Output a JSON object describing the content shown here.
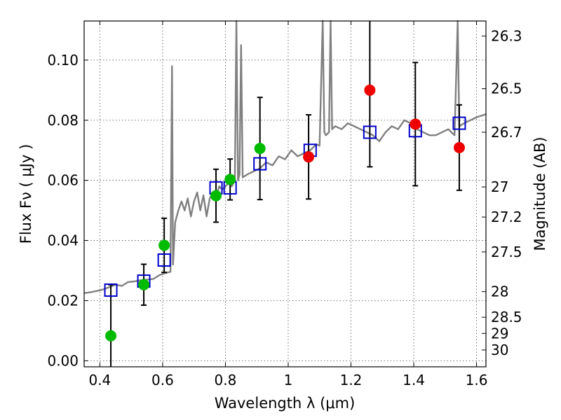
{
  "chart_data": {
    "type": "scatter",
    "title": "",
    "xlabel": "Wavelength  λ (μm)",
    "ylabel": "Flux  Fν  ( μJy )",
    "ylabel_right": "Magnitude (AB)",
    "xlim": [
      0.35,
      1.63
    ],
    "ylim": [
      -0.002,
      0.113
    ],
    "grid": true,
    "x_ticks": [
      0.4,
      0.6,
      0.8,
      1.0,
      1.2,
      1.4,
      1.6
    ],
    "x_tick_labels": [
      "0.4",
      "0.6",
      "0.8",
      "1",
      "1.2",
      "1.4",
      "1.6"
    ],
    "y_ticks": [
      0.0,
      0.02,
      0.04,
      0.06,
      0.08,
      0.1
    ],
    "y_tick_labels": [
      "0.00",
      "0.02",
      "0.04",
      "0.06",
      "0.08",
      "0.10"
    ],
    "right_ticks": [
      {
        "flux": 0.108,
        "label": "26.3"
      },
      {
        "flux": 0.0905,
        "label": "26.5"
      },
      {
        "flux": 0.076,
        "label": "26.7"
      },
      {
        "flux": 0.0578,
        "label": "27"
      },
      {
        "flux": 0.0478,
        "label": "27.2"
      },
      {
        "flux": 0.0362,
        "label": "27.5"
      },
      {
        "flux": 0.023,
        "label": "28"
      },
      {
        "flux": 0.0145,
        "label": "28.5"
      },
      {
        "flux": 0.0091,
        "label": "29"
      },
      {
        "flux": 0.0036,
        "label": "30"
      }
    ],
    "colors": {
      "spectrum": "#808080",
      "model_box": "#0000cc",
      "green": "#00bb00",
      "red": "#ee0000",
      "error_bar": "#000000"
    },
    "series": [
      {
        "kind": "spectrum",
        "points": [
          [
            0.35,
            0.0225
          ],
          [
            0.37,
            0.0228
          ],
          [
            0.39,
            0.0232
          ],
          [
            0.41,
            0.0237
          ],
          [
            0.43,
            0.0245
          ],
          [
            0.45,
            0.0253
          ],
          [
            0.47,
            0.0249
          ],
          [
            0.49,
            0.0262
          ],
          [
            0.51,
            0.0264
          ],
          [
            0.53,
            0.0268
          ],
          [
            0.55,
            0.027
          ],
          [
            0.57,
            0.0272
          ],
          [
            0.59,
            0.0285
          ],
          [
            0.61,
            0.0292
          ],
          [
            0.625,
            0.0296
          ],
          [
            0.63,
            0.098
          ],
          [
            0.633,
            0.032
          ],
          [
            0.64,
            0.046
          ],
          [
            0.65,
            0.05
          ],
          [
            0.66,
            0.053
          ],
          [
            0.67,
            0.05
          ],
          [
            0.68,
            0.054
          ],
          [
            0.69,
            0.048
          ],
          [
            0.7,
            0.053
          ],
          [
            0.71,
            0.056
          ],
          [
            0.72,
            0.05
          ],
          [
            0.73,
            0.055
          ],
          [
            0.74,
            0.048
          ],
          [
            0.75,
            0.054
          ],
          [
            0.76,
            0.056
          ],
          [
            0.77,
            0.054
          ],
          [
            0.78,
            0.058
          ],
          [
            0.79,
            0.057
          ],
          [
            0.8,
            0.058
          ],
          [
            0.81,
            0.059
          ],
          [
            0.82,
            0.058
          ],
          [
            0.83,
            0.06
          ],
          [
            0.835,
            0.113
          ],
          [
            0.84,
            0.06
          ],
          [
            0.845,
            0.062
          ],
          [
            0.85,
            0.105
          ],
          [
            0.855,
            0.061
          ],
          [
            0.87,
            0.062
          ],
          [
            0.89,
            0.063
          ],
          [
            0.91,
            0.064
          ],
          [
            0.93,
            0.066
          ],
          [
            0.95,
            0.065
          ],
          [
            0.97,
            0.068
          ],
          [
            0.99,
            0.067
          ],
          [
            1.01,
            0.07
          ],
          [
            1.03,
            0.068
          ],
          [
            1.05,
            0.069
          ],
          [
            1.07,
            0.07
          ],
          [
            1.09,
            0.072
          ],
          [
            1.1,
            0.0715
          ],
          [
            1.11,
            0.113
          ],
          [
            1.115,
            0.076
          ],
          [
            1.12,
            0.075
          ],
          [
            1.13,
            0.076
          ],
          [
            1.135,
            0.113
          ],
          [
            1.14,
            0.077
          ],
          [
            1.15,
            0.078
          ],
          [
            1.17,
            0.077
          ],
          [
            1.19,
            0.079
          ],
          [
            1.21,
            0.078
          ],
          [
            1.23,
            0.077
          ],
          [
            1.25,
            0.076
          ],
          [
            1.27,
            0.075
          ],
          [
            1.29,
            0.073
          ],
          [
            1.31,
            0.076
          ],
          [
            1.33,
            0.078
          ],
          [
            1.35,
            0.077
          ],
          [
            1.37,
            0.08
          ],
          [
            1.39,
            0.079
          ],
          [
            1.41,
            0.077
          ],
          [
            1.43,
            0.076
          ],
          [
            1.45,
            0.075
          ],
          [
            1.47,
            0.075
          ],
          [
            1.49,
            0.076
          ],
          [
            1.51,
            0.077
          ],
          [
            1.53,
            0.075
          ],
          [
            1.54,
            0.113
          ],
          [
            1.545,
            0.078
          ],
          [
            1.56,
            0.079
          ],
          [
            1.58,
            0.08
          ],
          [
            1.6,
            0.081
          ],
          [
            1.63,
            0.082
          ]
        ]
      },
      {
        "kind": "model_boxes",
        "points": [
          [
            0.435,
            0.0235
          ],
          [
            0.54,
            0.0265
          ],
          [
            0.605,
            0.0335
          ],
          [
            0.77,
            0.0575
          ],
          [
            0.815,
            0.0575
          ],
          [
            0.91,
            0.0655
          ],
          [
            1.07,
            0.07
          ],
          [
            1.26,
            0.076
          ],
          [
            1.405,
            0.0765
          ],
          [
            1.545,
            0.079
          ]
        ]
      },
      {
        "kind": "observed",
        "points": [
          {
            "x": 0.435,
            "y": 0.0083,
            "err": 0.017,
            "color": "green"
          },
          {
            "x": 0.54,
            "y": 0.0253,
            "err": 0.0068,
            "color": "green"
          },
          {
            "x": 0.605,
            "y": 0.0384,
            "err": 0.009,
            "color": "green"
          },
          {
            "x": 0.77,
            "y": 0.0549,
            "err": 0.0088,
            "color": "green"
          },
          {
            "x": 0.815,
            "y": 0.0603,
            "err": 0.0068,
            "color": "green"
          },
          {
            "x": 0.91,
            "y": 0.0706,
            "err": 0.017,
            "color": "green"
          },
          {
            "x": 1.065,
            "y": 0.0678,
            "err": 0.014,
            "color": "red"
          },
          {
            "x": 1.26,
            "y": 0.09,
            "err": 0.0255,
            "color": "red"
          },
          {
            "x": 1.405,
            "y": 0.0787,
            "err": 0.0205,
            "color": "red"
          },
          {
            "x": 1.545,
            "y": 0.0709,
            "err": 0.0142,
            "color": "red"
          }
        ]
      }
    ]
  }
}
